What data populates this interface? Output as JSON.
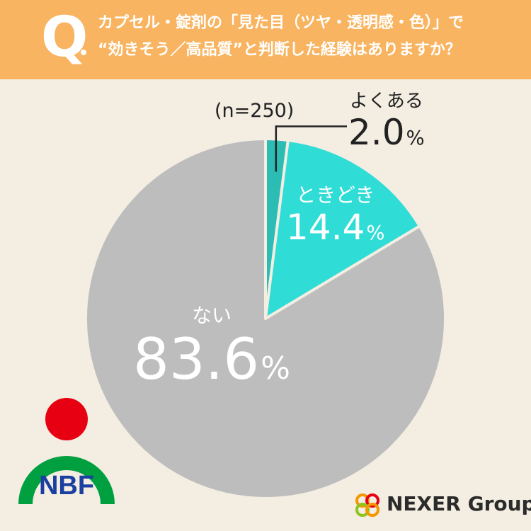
{
  "question": {
    "marker": "Q",
    "line1": "カプセル・錠剤の「見た目（ツヤ・透明感・色）」で",
    "line2": "“効きそう／高品質”と判断した経験はありますか？"
  },
  "sample_label": "(n=250)",
  "chart_data": {
    "type": "pie",
    "title": "",
    "slices": [
      {
        "label": "よくある",
        "value": 2.0,
        "display": "2.0",
        "color": "#2bbcb4"
      },
      {
        "label": "ときどき",
        "value": 14.4,
        "display": "14.4",
        "color": "#2fdcd6"
      },
      {
        "label": "ない",
        "value": 83.6,
        "display": "83.6",
        "color": "#bdbdbd"
      }
    ],
    "unit": "%",
    "start_angle_deg": 0,
    "direction": "clockwise",
    "legend": "none"
  },
  "logos": {
    "left_text": "NBF",
    "right_text": "NEXER Group"
  },
  "colors": {
    "header": "#f8b460",
    "background": "#f3ede2",
    "nbf_red": "#e60012",
    "nbf_green": "#00a040",
    "nbf_blue": "#1a3fa0"
  }
}
